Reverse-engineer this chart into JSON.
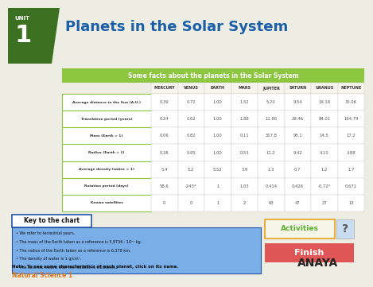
{
  "title": "Planets in the Solar System",
  "unit_label": "UNIT",
  "unit_number": "1",
  "table_title": "Some facts about the planets in the Solar System",
  "columns": [
    "MERCURY",
    "VENUS",
    "EARTH",
    "MARS",
    "JUPITER",
    "SATURN",
    "URANUS",
    "NEPTUNE"
  ],
  "rows": [
    "Average distance to the Sun (A.U.)",
    "Translation period (years)",
    "Mass (Earth = 1)",
    "Radius (Earth = 1)",
    "Average density (water = 1)",
    "Rotation period (days)",
    "Known satellites"
  ],
  "data": [
    [
      "0.39",
      "0.72",
      "1.00",
      "1.52",
      "5.20",
      "9.54",
      "19.18",
      "30.06"
    ],
    [
      "0.24",
      "0.62",
      "1.00",
      "1.88",
      "11.86",
      "29.46",
      "84.01",
      "164.79"
    ],
    [
      "0.06",
      "0.82",
      "1.00",
      "0.11",
      "317.8",
      "95.1",
      "14.5",
      "17.2"
    ],
    [
      "0.38",
      "0.95",
      "1.00",
      "0.53",
      "11.2",
      "9.42",
      "4.10",
      "3.88"
    ],
    [
      "5.4",
      "5.2",
      "5.52",
      "3.9",
      "1.3",
      "0.7",
      "1.2",
      "1.7"
    ],
    [
      "58.6",
      "-243*",
      "1",
      "1.03",
      "0.414",
      "0.426",
      "-0.72*",
      "0.671"
    ],
    [
      "0",
      "0",
      "1",
      "2",
      "63",
      "47",
      "27",
      "13"
    ]
  ],
  "key_title": "Key to the chart",
  "key_bullets": [
    "We refer to terrestrial years.",
    "The mass of the Earth taken as a reference is 5.9736 · 10²⁴ kg.",
    "The radius of the Earth taken as a reference is 6,378 km.",
    "The density of water is 1 g/cm³.",
    "The asterisk means that the rotation is clockwise."
  ],
  "note": "Note: To see some characteristics of each planet, click on its name.",
  "footer": "Natural Science 1",
  "bg_color": "#eeede3",
  "header_bg": "#8dc63f",
  "header_text_color": "#ffffff",
  "row_label_bg": "#ffffff",
  "row_label_border": "#8dc63f",
  "data_cell_bg": "#ffffff",
  "data_cell_text": "#555555",
  "key_bg": "#7aaee8",
  "key_border": "#2255aa",
  "title_color": "#1a5fa8",
  "unit_bg": "#3a7020",
  "footer_color": "#e07820",
  "activities_color": "#5ab030",
  "activities_border": "#e8a020",
  "finish_bg": "#e05555",
  "finish_text": "#ffffff",
  "anaya_color": "#222222"
}
